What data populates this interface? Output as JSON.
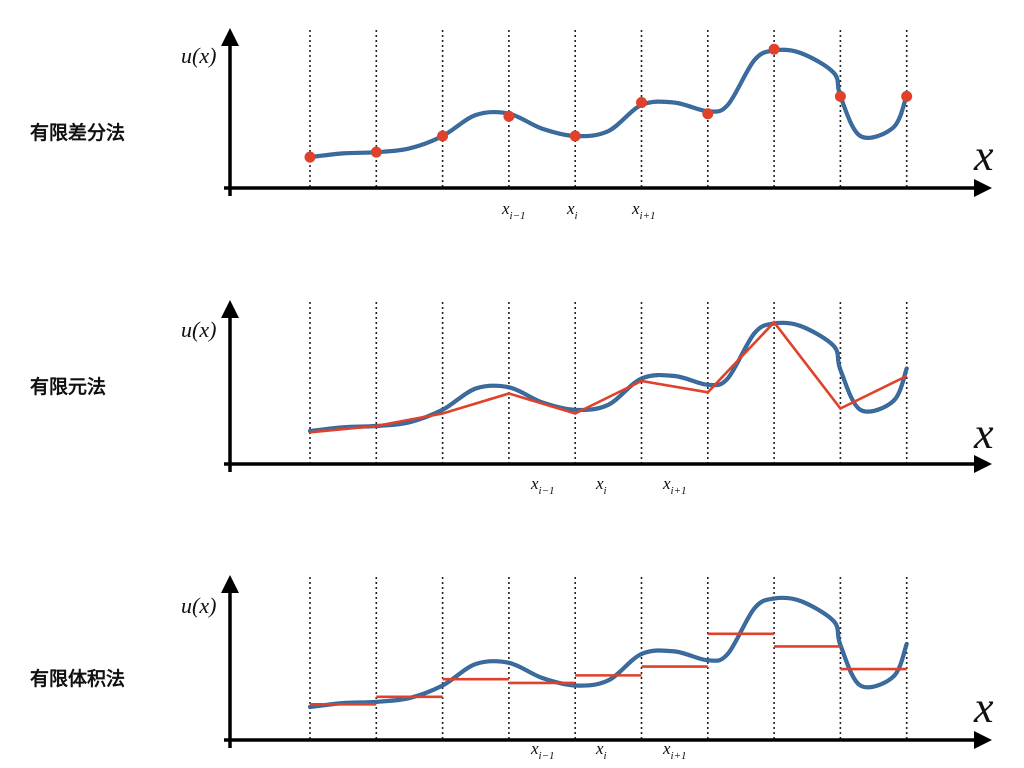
{
  "panels": [
    {
      "label": "有限差分法",
      "method": "finite-difference",
      "y_axis_label": "u(x)",
      "x_axis_label": "x",
      "tick_labels": [
        "x",
        "x",
        "x"
      ],
      "tick_subscripts": [
        "i−1",
        "i",
        "i+1"
      ]
    },
    {
      "label": "有限元法",
      "method": "finite-element",
      "y_axis_label": "u(x)",
      "x_axis_label": "x",
      "tick_labels": [
        "x",
        "x",
        "x"
      ],
      "tick_subscripts": [
        "i−1",
        "i",
        "i+1"
      ]
    },
    {
      "label": "有限体积法",
      "method": "finite-volume",
      "y_axis_label": "u(x)",
      "x_axis_label": "x",
      "tick_labels": [
        "x",
        "x",
        "x"
      ],
      "tick_subscripts": [
        "i−1",
        "i",
        "i+1"
      ]
    }
  ],
  "colors": {
    "curve": "#2d5f93",
    "approximation": "#e0412a",
    "axis": "#000000",
    "grid": "#222222"
  },
  "chart_data": {
    "type": "line",
    "node_count": 10,
    "node_index_range": [
      0,
      9
    ],
    "u_range": [
      0,
      10
    ],
    "curve_samples": [
      [
        0.0,
        1.2
      ],
      [
        0.5,
        1.5
      ],
      [
        1.0,
        1.6
      ],
      [
        1.5,
        1.9
      ],
      [
        2.0,
        2.9
      ],
      [
        2.5,
        4.6
      ],
      [
        3.0,
        4.7
      ],
      [
        3.5,
        3.5
      ],
      [
        4.0,
        2.9
      ],
      [
        4.5,
        3.3
      ],
      [
        5.0,
        5.4
      ],
      [
        5.5,
        5.6
      ],
      [
        6.0,
        4.9
      ],
      [
        6.3,
        5.4
      ],
      [
        6.7,
        9.0
      ],
      [
        7.0,
        9.8
      ],
      [
        7.4,
        9.6
      ],
      [
        7.9,
        8.0
      ],
      [
        8.0,
        6.1
      ],
      [
        8.3,
        2.9
      ],
      [
        8.8,
        3.6
      ],
      [
        9.0,
        6.2
      ]
    ],
    "finite_difference_points": [
      1.2,
      1.6,
      2.9,
      4.5,
      2.9,
      5.6,
      4.7,
      9.9,
      6.1,
      6.1
    ],
    "finite_element_nodes": [
      1.1,
      1.6,
      2.6,
      4.2,
      2.6,
      5.2,
      4.3,
      9.9,
      3.0,
      5.6
    ],
    "finite_volume_cells": [
      1.4,
      2.0,
      3.4,
      3.1,
      3.7,
      4.4,
      7.0,
      6.0,
      4.2
    ]
  }
}
